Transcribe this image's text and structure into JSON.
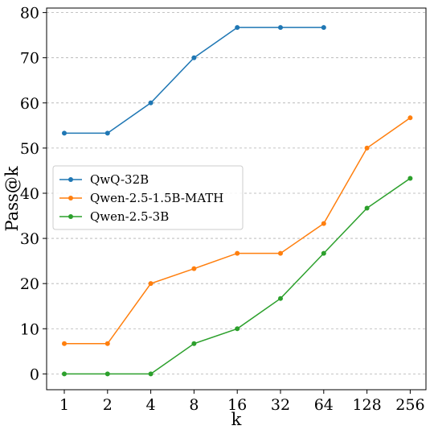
{
  "chart_data": {
    "type": "line",
    "xlabel": "k",
    "ylabel": "Pass@k",
    "categories": [
      "1",
      "2",
      "4",
      "8",
      "16",
      "32",
      "64",
      "128",
      "256"
    ],
    "ylim": [
      -3.5,
      81
    ],
    "yticks": [
      "0",
      "10",
      "20",
      "30",
      "40",
      "50",
      "60",
      "70",
      "80"
    ],
    "grid": "horizontal, dashed",
    "legend_position": "center-left",
    "series": [
      {
        "name": "QwQ-32B",
        "color": "#1f77b4",
        "values": [
          53.3,
          53.3,
          60.0,
          70.0,
          76.7,
          76.7,
          76.7,
          null,
          null
        ]
      },
      {
        "name": "Qwen-2.5-1.5B-MATH",
        "color": "#ff7f0e",
        "values": [
          6.7,
          6.7,
          20.0,
          23.3,
          26.7,
          26.7,
          33.3,
          50.0,
          56.7
        ]
      },
      {
        "name": "Qwen-2.5-3B",
        "color": "#2ca02c",
        "values": [
          0.0,
          0.0,
          0.0,
          6.7,
          10.0,
          16.7,
          26.7,
          36.7,
          43.3
        ]
      }
    ]
  }
}
